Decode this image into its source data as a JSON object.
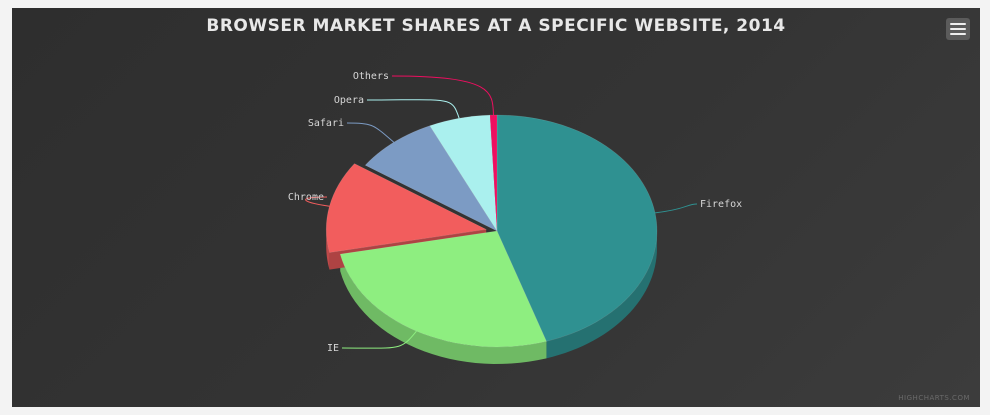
{
  "chart": {
    "title": "Browser market shares at a specific website, 2014",
    "credits": "Highcharts.com",
    "menu_icon": "hamburger-menu-icon"
  },
  "chart_data": {
    "type": "pie",
    "style": "3d",
    "title": "Browser market shares at a specific website, 2014",
    "slices": [
      {
        "label": "Firefox",
        "value": 45.0,
        "color": "#2f9191"
      },
      {
        "label": "IE",
        "value": 26.8,
        "color": "#8eee80"
      },
      {
        "label": "Chrome",
        "value": 12.8,
        "color": "#f25d5d",
        "sliced": true
      },
      {
        "label": "Safari",
        "value": 8.5,
        "color": "#7c9bc4"
      },
      {
        "label": "Opera",
        "value": 6.2,
        "color": "#aaf0ee"
      },
      {
        "label": "Others",
        "value": 0.7,
        "color": "#ee0e60"
      }
    ]
  }
}
